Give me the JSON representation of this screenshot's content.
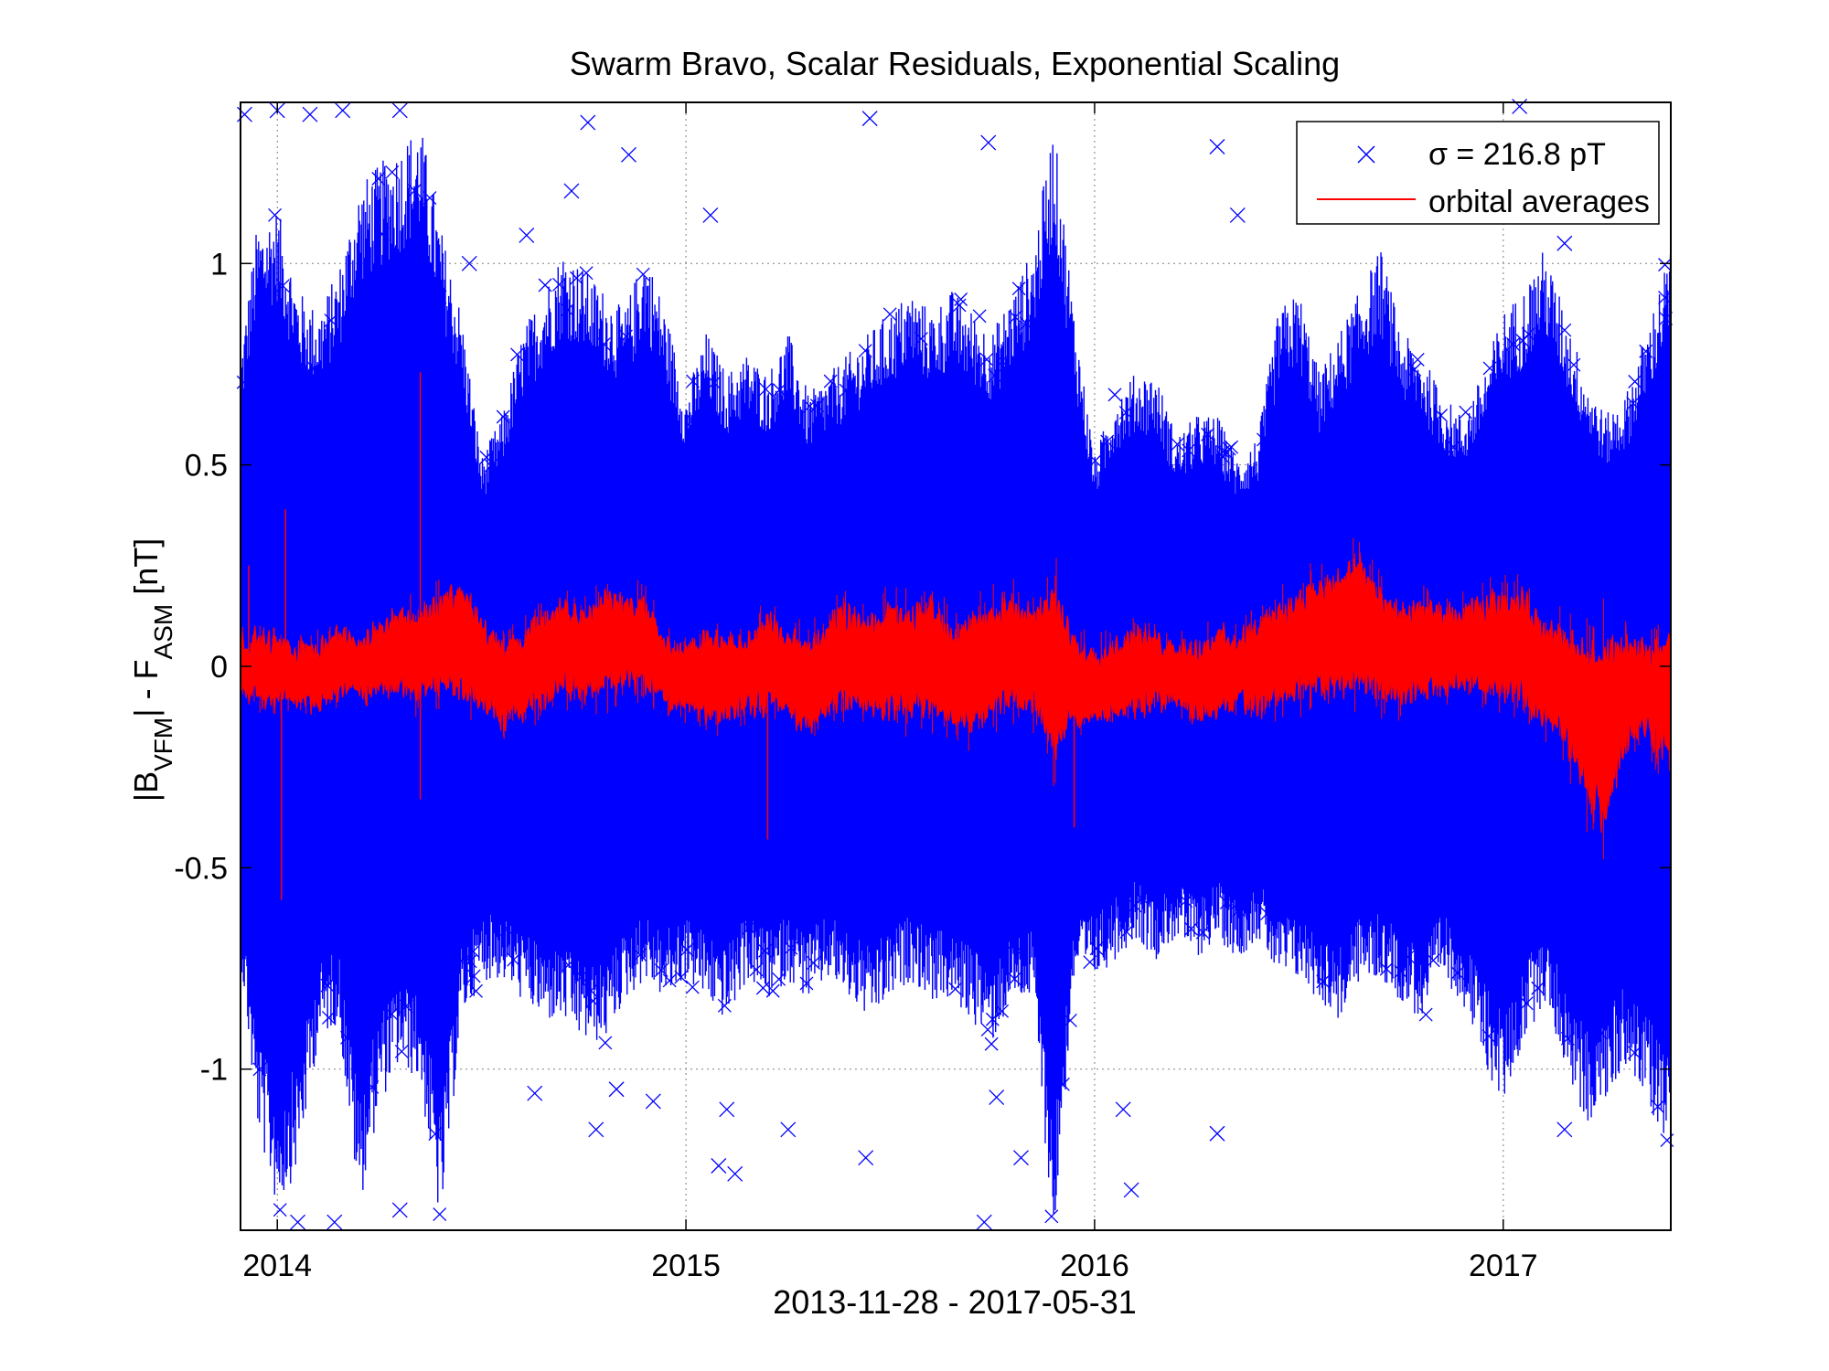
{
  "chart_data": {
    "type": "scatter",
    "title": "Swarm Bravo, Scalar Residuals, Exponential Scaling",
    "xlabel": "2013-11-28 - 2017-05-31",
    "ylabel": {
      "parts": [
        {
          "text": "|B",
          "sub": false
        },
        {
          "text": "VFM",
          "sub": true
        },
        {
          "text": "| - F",
          "sub": false
        },
        {
          "text": "ASM",
          "sub": true
        },
        {
          "text": " [nT]",
          "sub": false
        }
      ],
      "units": "nT"
    },
    "x_range": [
      "2013-11-28",
      "2017-05-31"
    ],
    "xlim_years": [
      2013.91,
      2017.41
    ],
    "ylim": [
      -1.4,
      1.4
    ],
    "x_ticks": [
      {
        "value": 2014,
        "label": "2014"
      },
      {
        "value": 2015,
        "label": "2015"
      },
      {
        "value": 2016,
        "label": "2016"
      },
      {
        "value": 2017,
        "label": "2017"
      }
    ],
    "y_ticks": [
      {
        "value": 1,
        "label": "1"
      },
      {
        "value": 0.5,
        "label": "0.5"
      },
      {
        "value": 0,
        "label": "0"
      },
      {
        "value": -0.5,
        "label": "-0.5"
      },
      {
        "value": -1,
        "label": "-1"
      }
    ],
    "grid": true,
    "legend_position": "top-right",
    "colors": {
      "residuals": "#0000ff",
      "averages": "#ff0000"
    },
    "series": [
      {
        "name": "σ = 216.8 pT",
        "marker": "x",
        "color": "#0000ff",
        "kind": "scatter-envelope",
        "envelope": {
          "x": [
            2013.91,
            2013.95,
            2014.0,
            2014.05,
            2014.1,
            2014.15,
            2014.2,
            2014.25,
            2014.3,
            2014.35,
            2014.4,
            2014.45,
            2014.5,
            2014.55,
            2014.6,
            2014.65,
            2014.7,
            2014.75,
            2014.8,
            2014.85,
            2014.9,
            2014.95,
            2015.0,
            2015.05,
            2015.1,
            2015.15,
            2015.2,
            2015.25,
            2015.3,
            2015.35,
            2015.4,
            2015.45,
            2015.5,
            2015.55,
            2015.6,
            2015.65,
            2015.7,
            2015.75,
            2015.8,
            2015.85,
            2015.9,
            2015.95,
            2016.0,
            2016.05,
            2016.1,
            2016.15,
            2016.2,
            2016.25,
            2016.3,
            2016.35,
            2016.4,
            2016.45,
            2016.5,
            2016.55,
            2016.6,
            2016.65,
            2016.7,
            2016.75,
            2016.8,
            2016.85,
            2016.9,
            2016.95,
            2017.0,
            2017.05,
            2017.1,
            2017.15,
            2017.2,
            2017.25,
            2017.3,
            2017.35,
            2017.41
          ],
          "upper": [
            0.75,
            1.05,
            1.1,
            0.9,
            0.85,
            0.95,
            1.15,
            1.2,
            1.25,
            1.3,
            1.05,
            0.85,
            0.5,
            0.6,
            0.8,
            0.9,
            1.0,
            0.95,
            0.9,
            0.85,
            1.0,
            0.85,
            0.65,
            0.8,
            0.7,
            0.75,
            0.7,
            0.8,
            0.65,
            0.7,
            0.75,
            0.8,
            0.85,
            0.9,
            0.85,
            0.9,
            0.85,
            0.8,
            0.9,
            1.0,
            1.3,
            0.85,
            0.5,
            0.65,
            0.7,
            0.7,
            0.55,
            0.6,
            0.6,
            0.5,
            0.55,
            0.85,
            0.9,
            0.7,
            0.8,
            0.9,
            1.0,
            0.8,
            0.75,
            0.65,
            0.6,
            0.7,
            0.85,
            0.9,
            1.0,
            0.85,
            0.7,
            0.6,
            0.65,
            0.8,
            1.0
          ],
          "lower": [
            -0.7,
            -1.1,
            -1.3,
            -1.2,
            -0.9,
            -0.85,
            -1.3,
            -1.05,
            -0.95,
            -1.0,
            -1.35,
            -0.85,
            -0.75,
            -0.75,
            -0.8,
            -0.85,
            -0.85,
            -0.9,
            -0.9,
            -0.8,
            -0.75,
            -0.8,
            -0.75,
            -0.8,
            -0.85,
            -0.75,
            -0.8,
            -0.75,
            -0.8,
            -0.75,
            -0.8,
            -0.85,
            -0.8,
            -0.75,
            -0.8,
            -0.8,
            -0.85,
            -0.9,
            -0.8,
            -0.8,
            -1.38,
            -0.75,
            -0.75,
            -0.7,
            -0.65,
            -0.7,
            -0.65,
            -0.7,
            -0.65,
            -0.7,
            -0.65,
            -0.75,
            -0.75,
            -0.8,
            -0.85,
            -0.75,
            -0.75,
            -0.8,
            -0.85,
            -0.75,
            -0.8,
            -0.95,
            -1.05,
            -0.9,
            -0.8,
            -0.95,
            -1.1,
            -1.05,
            -0.95,
            -1.05,
            -1.15
          ]
        },
        "outliers": [
          {
            "x": 2013.92,
            "y": 1.37
          },
          {
            "x": 2014.0,
            "y": 1.38
          },
          {
            "x": 2014.08,
            "y": 1.37
          },
          {
            "x": 2014.16,
            "y": 1.38
          },
          {
            "x": 2014.05,
            "y": -1.38
          },
          {
            "x": 2014.14,
            "y": -1.38
          },
          {
            "x": 2014.3,
            "y": -1.35
          },
          {
            "x": 2014.3,
            "y": 1.38
          },
          {
            "x": 2014.47,
            "y": 1.0
          },
          {
            "x": 2014.76,
            "y": 1.35
          },
          {
            "x": 2014.86,
            "y": 1.27
          },
          {
            "x": 2014.72,
            "y": 1.18
          },
          {
            "x": 2014.61,
            "y": 1.07
          },
          {
            "x": 2015.06,
            "y": 1.12
          },
          {
            "x": 2015.45,
            "y": 1.36
          },
          {
            "x": 2015.74,
            "y": 1.3
          },
          {
            "x": 2016.3,
            "y": 1.29
          },
          {
            "x": 2016.35,
            "y": 1.12
          },
          {
            "x": 2017.04,
            "y": 1.39
          },
          {
            "x": 2017.15,
            "y": 1.05
          },
          {
            "x": 2014.63,
            "y": -1.06
          },
          {
            "x": 2014.78,
            "y": -1.15
          },
          {
            "x": 2014.83,
            "y": -1.05
          },
          {
            "x": 2014.92,
            "y": -1.08
          },
          {
            "x": 2015.08,
            "y": -1.24
          },
          {
            "x": 2015.12,
            "y": -1.26
          },
          {
            "x": 2015.1,
            "y": -1.1
          },
          {
            "x": 2015.25,
            "y": -1.15
          },
          {
            "x": 2015.44,
            "y": -1.22
          },
          {
            "x": 2015.73,
            "y": -1.38
          },
          {
            "x": 2015.82,
            "y": -1.22
          },
          {
            "x": 2016.07,
            "y": -1.1
          },
          {
            "x": 2016.09,
            "y": -1.3
          },
          {
            "x": 2016.3,
            "y": -1.16
          },
          {
            "x": 2017.15,
            "y": -1.15
          },
          {
            "x": 2015.76,
            "y": -1.07
          }
        ]
      },
      {
        "name": "orbital averages",
        "color": "#ff0000",
        "kind": "band",
        "band": {
          "x": [
            2013.91,
            2013.95,
            2014.0,
            2014.05,
            2014.1,
            2014.15,
            2014.2,
            2014.25,
            2014.3,
            2014.35,
            2014.4,
            2014.45,
            2014.5,
            2014.55,
            2014.6,
            2014.65,
            2014.7,
            2014.75,
            2014.8,
            2014.85,
            2014.9,
            2014.95,
            2015.0,
            2015.05,
            2015.1,
            2015.15,
            2015.2,
            2015.25,
            2015.3,
            2015.35,
            2015.4,
            2015.45,
            2015.5,
            2015.55,
            2015.6,
            2015.65,
            2015.7,
            2015.75,
            2015.8,
            2015.85,
            2015.9,
            2015.95,
            2016.0,
            2016.05,
            2016.1,
            2016.15,
            2016.2,
            2016.25,
            2016.3,
            2016.35,
            2016.4,
            2016.45,
            2016.5,
            2016.55,
            2016.6,
            2016.65,
            2016.7,
            2016.75,
            2016.8,
            2016.85,
            2016.9,
            2016.95,
            2017.0,
            2017.05,
            2017.1,
            2017.15,
            2017.2,
            2017.25,
            2017.3,
            2017.35,
            2017.41
          ],
          "upper": [
            0.06,
            0.07,
            0.06,
            0.04,
            0.05,
            0.08,
            0.05,
            0.1,
            0.13,
            0.12,
            0.16,
            0.19,
            0.11,
            0.05,
            0.06,
            0.12,
            0.14,
            0.12,
            0.17,
            0.16,
            0.15,
            0.06,
            0.03,
            0.08,
            0.06,
            0.05,
            0.12,
            0.07,
            0.05,
            0.1,
            0.13,
            0.09,
            0.14,
            0.12,
            0.15,
            0.09,
            0.1,
            0.13,
            0.16,
            0.12,
            0.17,
            0.06,
            0.03,
            0.05,
            0.08,
            0.06,
            0.05,
            0.04,
            0.08,
            0.06,
            0.1,
            0.14,
            0.17,
            0.19,
            0.21,
            0.26,
            0.16,
            0.13,
            0.14,
            0.13,
            0.13,
            0.15,
            0.17,
            0.16,
            0.1,
            0.07,
            0.03,
            0.04,
            0.05,
            0.03,
            0.08
          ],
          "lower": [
            -0.05,
            -0.07,
            -0.08,
            -0.08,
            -0.09,
            -0.06,
            -0.07,
            -0.06,
            -0.05,
            -0.07,
            -0.04,
            -0.06,
            -0.08,
            -0.13,
            -0.12,
            -0.08,
            -0.05,
            -0.06,
            -0.05,
            -0.03,
            -0.04,
            -0.08,
            -0.1,
            -0.12,
            -0.12,
            -0.1,
            -0.09,
            -0.12,
            -0.14,
            -0.1,
            -0.08,
            -0.11,
            -0.1,
            -0.11,
            -0.09,
            -0.12,
            -0.14,
            -0.1,
            -0.08,
            -0.1,
            -0.2,
            -0.13,
            -0.12,
            -0.12,
            -0.1,
            -0.09,
            -0.08,
            -0.12,
            -0.11,
            -0.08,
            -0.1,
            -0.08,
            -0.06,
            -0.05,
            -0.06,
            -0.04,
            -0.06,
            -0.08,
            -0.06,
            -0.05,
            -0.04,
            -0.06,
            -0.05,
            -0.08,
            -0.12,
            -0.17,
            -0.3,
            -0.38,
            -0.18,
            -0.16,
            -0.22
          ]
        },
        "spikes": [
          {
            "x": 2013.93,
            "y": 0.25
          },
          {
            "x": 2014.02,
            "y": 0.39
          },
          {
            "x": 2014.01,
            "y": -0.58
          },
          {
            "x": 2014.35,
            "y": 0.73
          },
          {
            "x": 2014.35,
            "y": -0.33
          },
          {
            "x": 2015.2,
            "y": -0.43
          },
          {
            "x": 2015.95,
            "y": -0.4
          }
        ]
      }
    ]
  }
}
